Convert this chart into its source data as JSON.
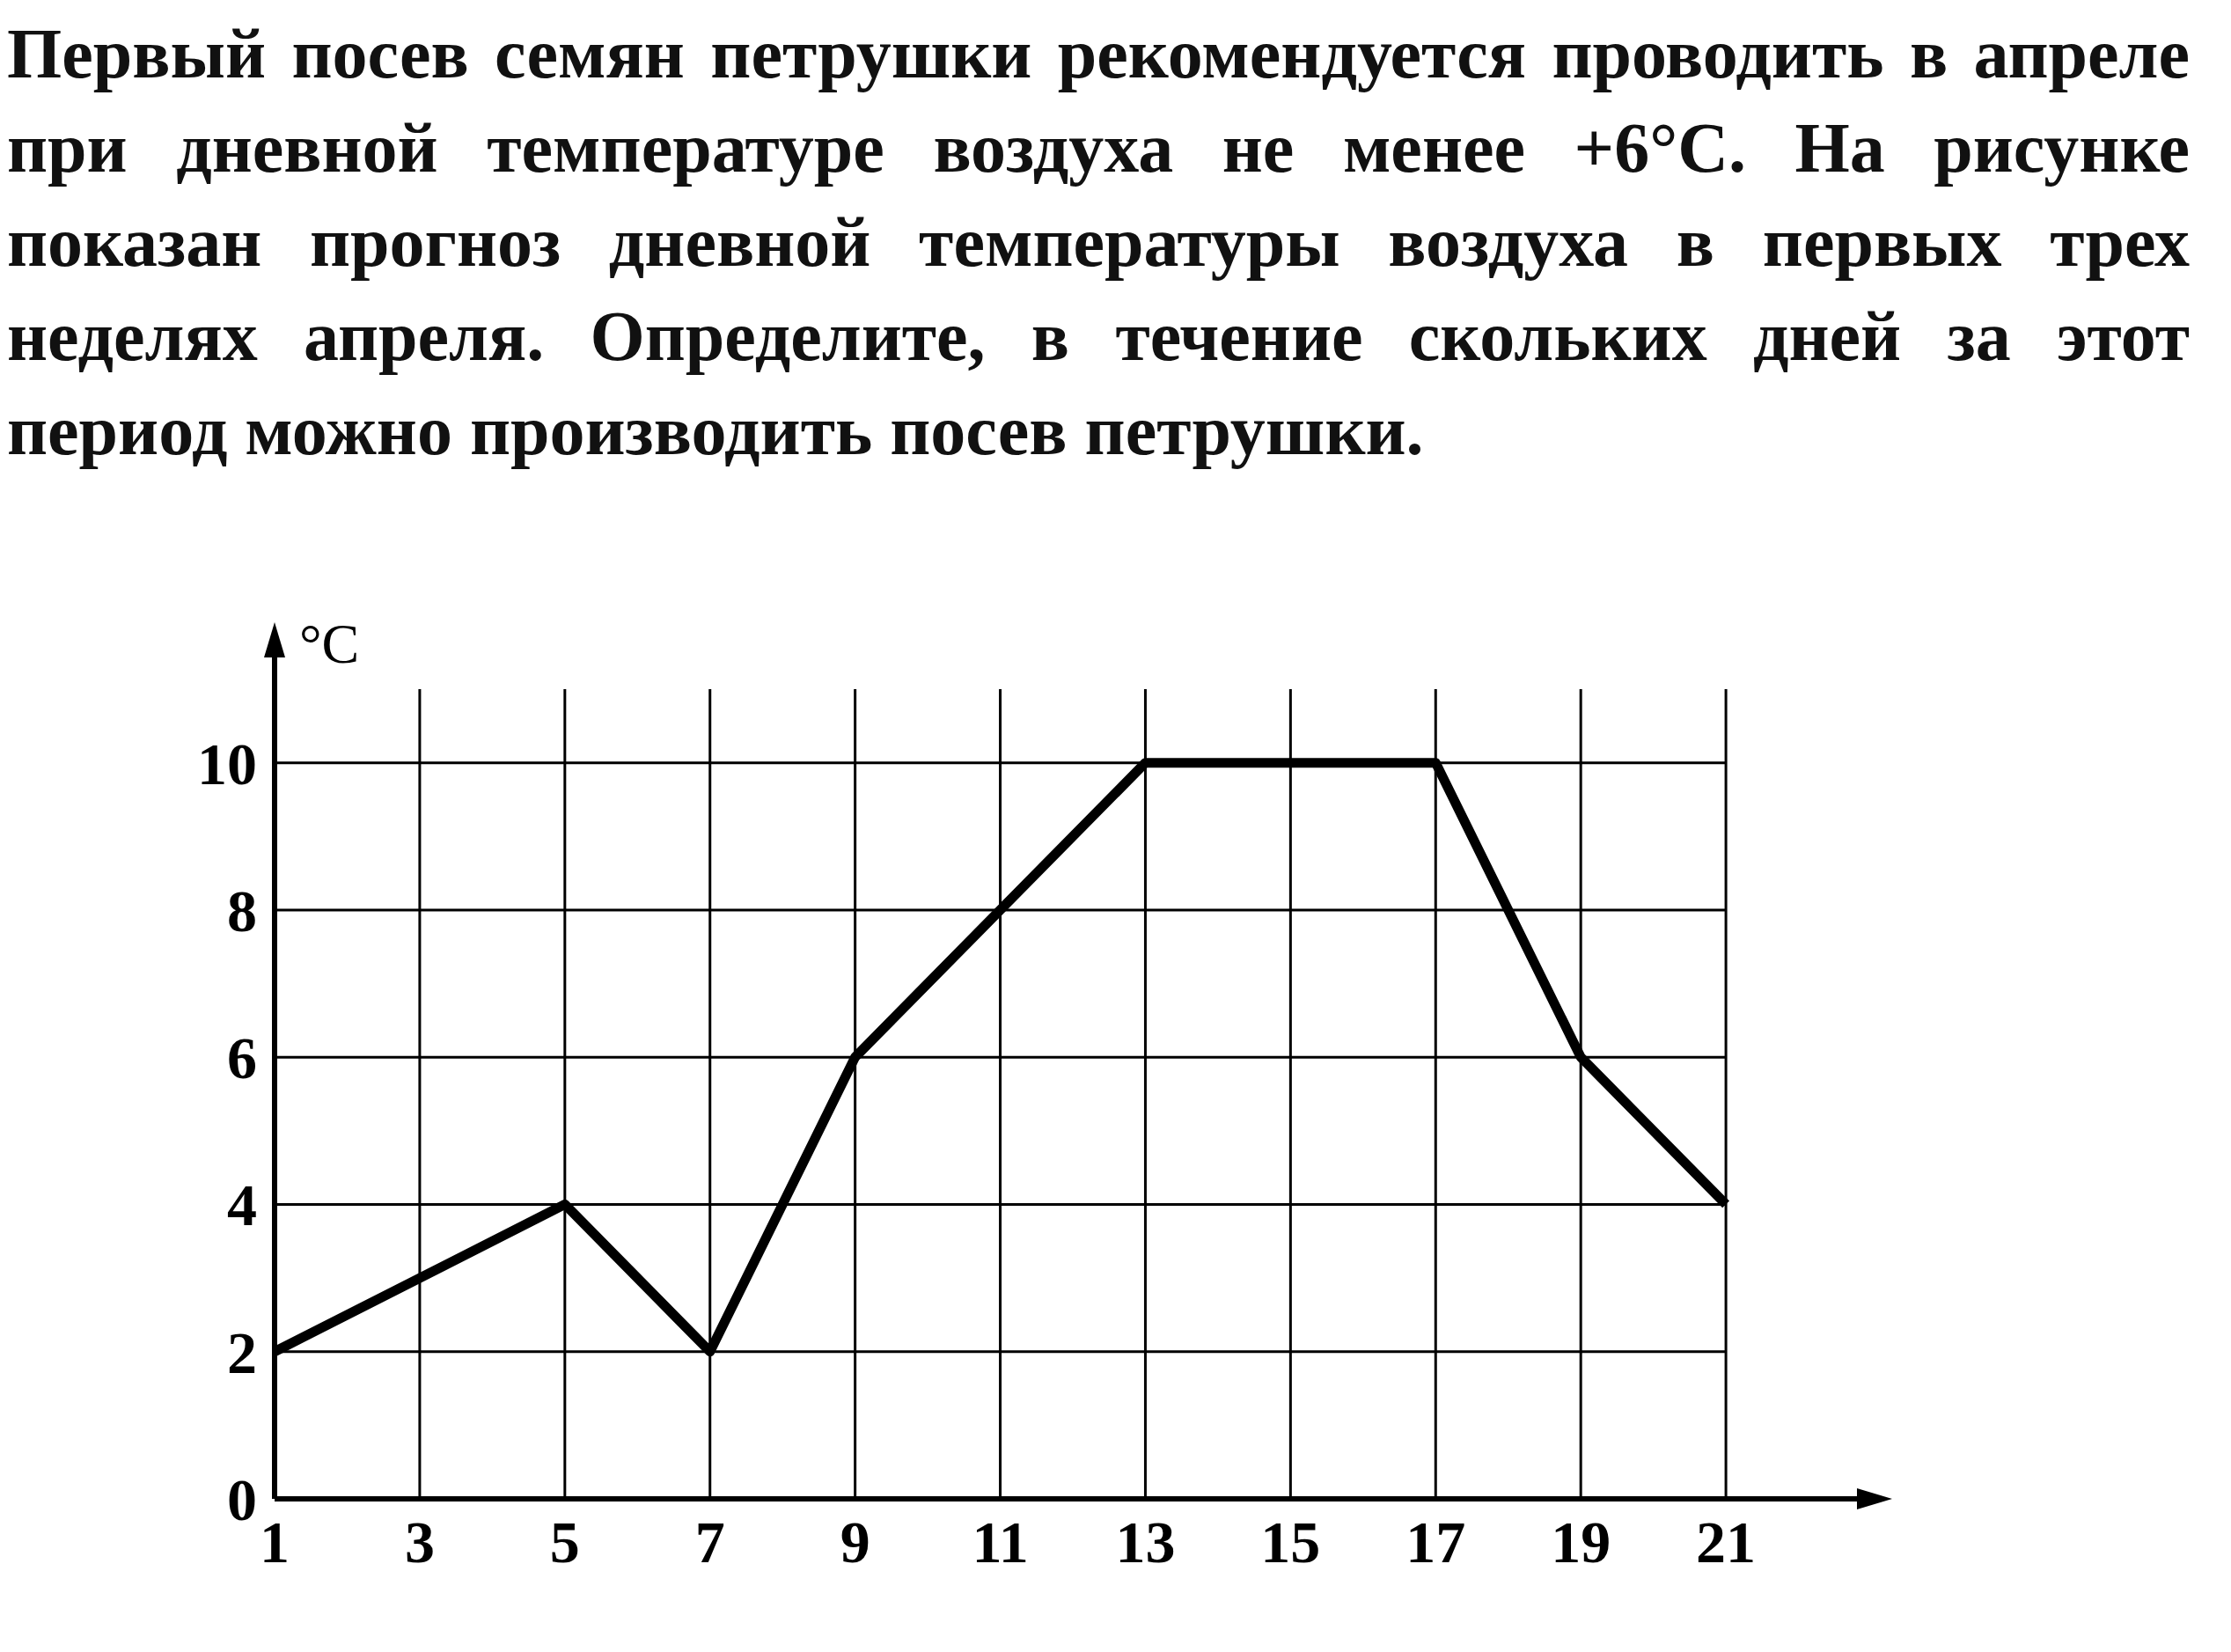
{
  "chart_data": {
    "type": "line",
    "title": "Первый посев семян петрушки рекомендуется проводить в апреле при дневной температуре воздуха не менее +6°C. На рисунке показан прогноз дневной температуры воздуха в первых трех неделях апреля. Определите, в течение скольких дней за этот период можно производить посев петрушки.",
    "ylabel": "°C",
    "x": [
      1,
      3,
      5,
      7,
      9,
      11,
      13,
      15,
      17,
      19,
      21
    ],
    "series": [
      {
        "color": "#000000",
        "values": [
          2,
          3,
          4,
          2,
          6,
          8,
          10,
          10,
          10,
          6,
          4
        ]
      }
    ],
    "xlim": [
      1,
      23
    ],
    "xticks": [
      1,
      3,
      5,
      7,
      9,
      11,
      13,
      15,
      17,
      19,
      21
    ],
    "ylim": [
      0,
      11
    ],
    "yticks": [
      0,
      2,
      4,
      6,
      8,
      10
    ],
    "grid": true,
    "marker": "none",
    "line_style": "solid"
  }
}
